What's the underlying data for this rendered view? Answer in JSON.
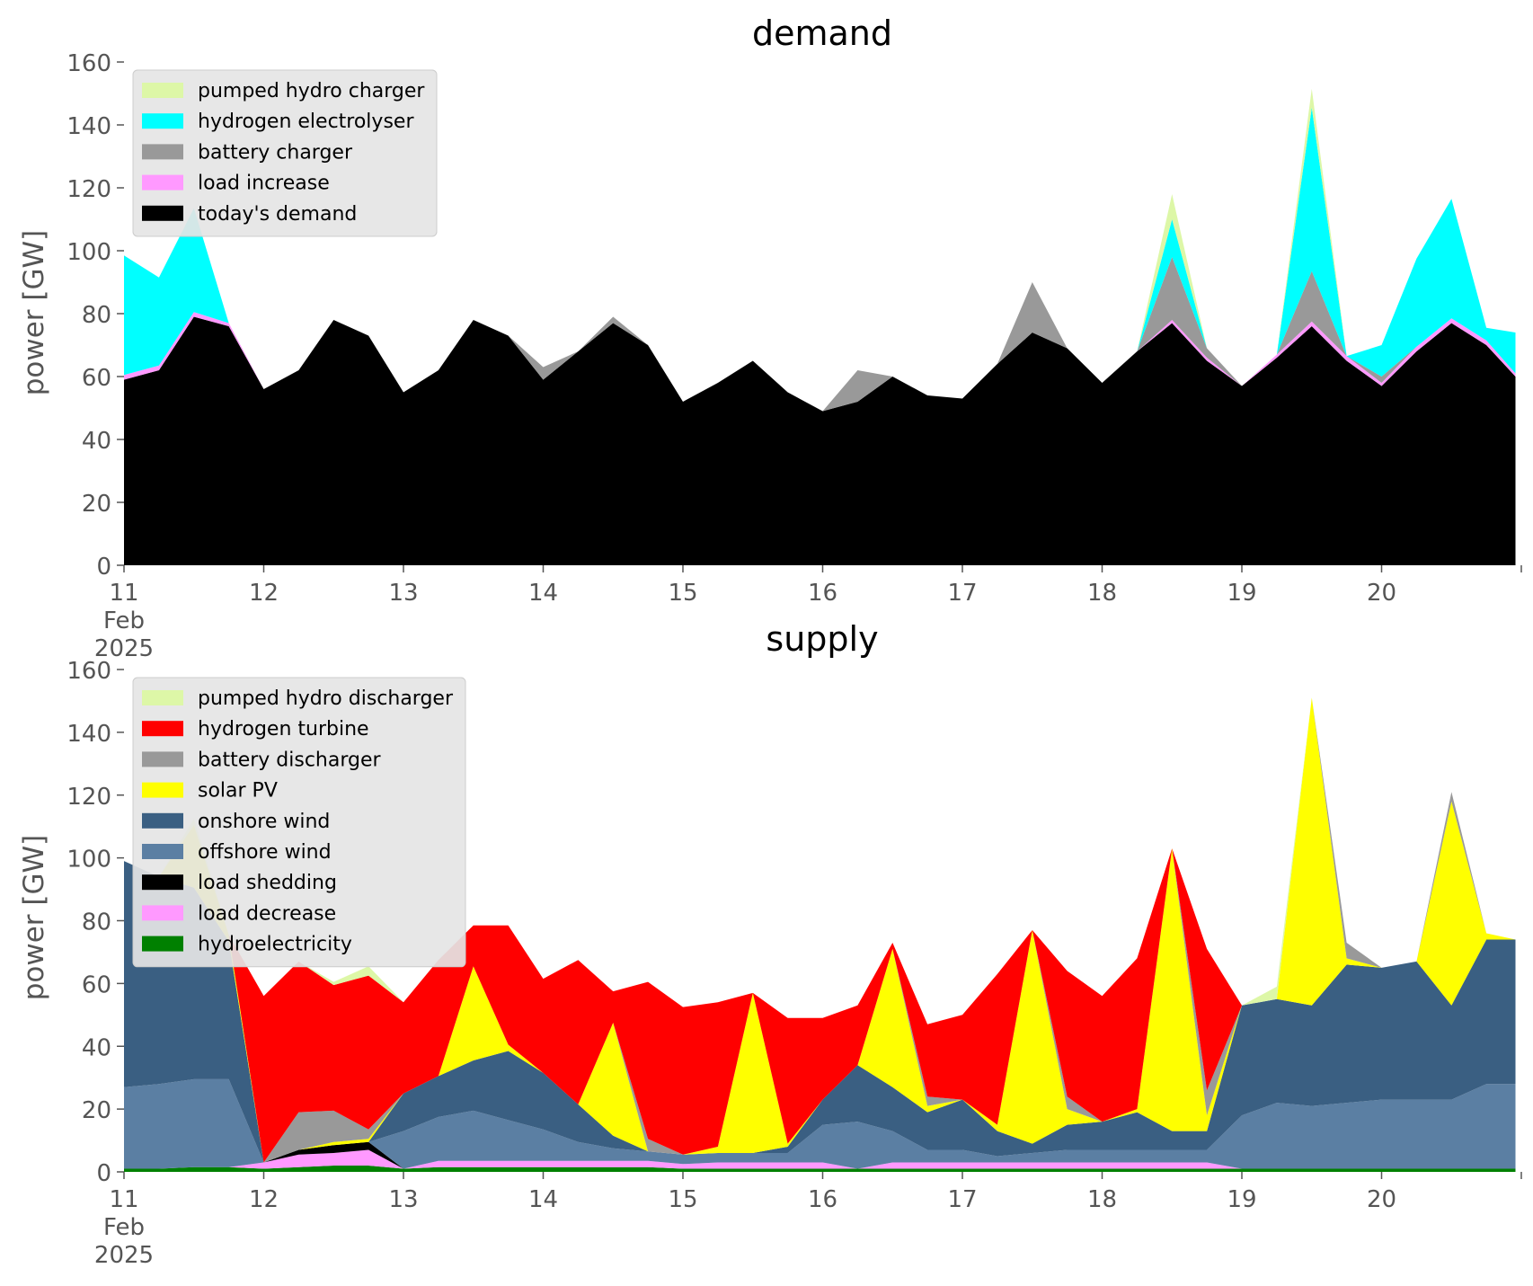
{
  "chart_data": [
    {
      "type": "area",
      "title": "demand",
      "ylabel": "power [GW]",
      "xlabel": "",
      "ylim": [
        0,
        160
      ],
      "xlim": [
        "2025-02-11",
        "2025-02-21"
      ],
      "yticks": [
        "0",
        "20",
        "40",
        "60",
        "80",
        "100",
        "120",
        "140",
        "160"
      ],
      "xticks": [
        {
          "x": "2025-02-11",
          "lines": [
            "11",
            "Feb",
            "2025"
          ]
        },
        {
          "x": "2025-02-12",
          "lines": [
            "12"
          ]
        },
        {
          "x": "2025-02-13",
          "lines": [
            "13"
          ]
        },
        {
          "x": "2025-02-14",
          "lines": [
            "14"
          ]
        },
        {
          "x": "2025-02-15",
          "lines": [
            "15"
          ]
        },
        {
          "x": "2025-02-16",
          "lines": [
            "16"
          ]
        },
        {
          "x": "2025-02-17",
          "lines": [
            "17"
          ]
        },
        {
          "x": "2025-02-18",
          "lines": [
            "18"
          ]
        },
        {
          "x": "2025-02-19",
          "lines": [
            "19"
          ]
        },
        {
          "x": "2025-02-20",
          "lines": [
            "20"
          ]
        },
        {
          "x": "2025-02-21",
          "lines": [
            ""
          ]
        }
      ],
      "grid": false,
      "stacked": true,
      "legend_position": "top-left",
      "x": [
        "2025-02-11 00:00",
        "2025-02-11 06:00",
        "2025-02-11 12:00",
        "2025-02-11 18:00",
        "2025-02-12 00:00",
        "2025-02-12 06:00",
        "2025-02-12 12:00",
        "2025-02-12 18:00",
        "2025-02-13 00:00",
        "2025-02-13 06:00",
        "2025-02-13 12:00",
        "2025-02-13 18:00",
        "2025-02-14 00:00",
        "2025-02-14 06:00",
        "2025-02-14 12:00",
        "2025-02-14 18:00",
        "2025-02-15 00:00",
        "2025-02-15 06:00",
        "2025-02-15 12:00",
        "2025-02-15 18:00",
        "2025-02-16 00:00",
        "2025-02-16 06:00",
        "2025-02-16 12:00",
        "2025-02-16 18:00",
        "2025-02-17 00:00",
        "2025-02-17 06:00",
        "2025-02-17 12:00",
        "2025-02-17 18:00",
        "2025-02-18 00:00",
        "2025-02-18 06:00",
        "2025-02-18 12:00",
        "2025-02-18 18:00",
        "2025-02-19 00:00",
        "2025-02-19 06:00",
        "2025-02-19 12:00",
        "2025-02-19 18:00",
        "2025-02-20 00:00",
        "2025-02-20 06:00",
        "2025-02-20 12:00",
        "2025-02-20 18:00",
        "2025-02-20 23:00"
      ],
      "series": [
        {
          "name": "today's demand",
          "color": "#000000",
          "values": [
            59,
            62,
            79,
            76,
            56,
            62,
            78,
            73,
            55,
            62,
            78,
            73,
            59,
            68,
            77,
            70,
            52,
            58,
            65,
            55,
            49,
            52,
            60,
            54,
            53,
            64,
            74,
            69,
            58,
            68,
            77,
            65,
            57,
            66,
            76,
            65,
            57,
            68,
            77,
            70,
            60
          ]
        },
        {
          "name": "load increase",
          "color": "#ff99ff",
          "values": [
            1.5,
            1.5,
            1.5,
            1,
            0,
            0,
            0,
            0,
            0,
            0,
            0,
            0,
            0,
            0,
            0,
            0,
            0,
            0,
            0,
            0,
            0,
            0,
            0,
            0,
            0,
            0,
            0,
            0,
            0,
            0,
            1,
            1,
            0,
            1,
            1.5,
            1.5,
            1,
            1.5,
            1.5,
            1.5,
            1
          ]
        },
        {
          "name": "battery charger",
          "color": "#999999",
          "values": [
            0,
            0,
            0,
            0,
            0,
            0,
            0,
            0,
            0,
            0,
            0,
            0,
            4,
            0,
            2,
            0,
            0,
            0,
            0,
            0,
            0,
            10,
            0,
            0,
            0,
            0,
            16,
            0,
            0,
            0,
            20,
            3,
            0,
            0,
            16,
            0,
            2,
            0,
            0,
            0,
            0
          ]
        },
        {
          "name": "hydrogen electrolyser",
          "color": "#00ffff",
          "values": [
            38,
            28,
            33,
            0,
            0,
            0,
            0,
            0,
            0,
            0,
            0,
            0,
            0,
            0,
            0,
            0,
            0,
            0,
            0,
            0,
            0,
            0,
            0,
            0,
            0,
            0,
            0,
            0,
            0,
            0,
            12,
            0,
            0,
            0,
            52,
            0,
            10,
            28,
            38,
            4,
            13
          ]
        },
        {
          "name": "pumped hydro charger",
          "color": "#ddf7a7",
          "values": [
            0,
            0,
            0,
            0,
            0,
            0,
            0,
            0,
            0,
            0,
            0,
            0,
            0,
            0,
            0,
            0,
            0,
            0,
            0,
            0,
            0,
            0,
            0,
            0,
            0,
            0,
            0,
            0,
            0,
            0,
            8,
            0,
            0,
            0,
            6,
            0,
            0,
            0,
            0,
            0,
            0
          ]
        }
      ]
    },
    {
      "type": "area",
      "title": "supply",
      "ylabel": "power [GW]",
      "xlabel": "",
      "ylim": [
        0,
        160
      ],
      "xlim": [
        "2025-02-11",
        "2025-02-21"
      ],
      "yticks": [
        "0",
        "20",
        "40",
        "60",
        "80",
        "100",
        "120",
        "140",
        "160"
      ],
      "xticks": [
        {
          "x": "2025-02-11",
          "lines": [
            "11",
            "Feb",
            "2025"
          ]
        },
        {
          "x": "2025-02-12",
          "lines": [
            "12"
          ]
        },
        {
          "x": "2025-02-13",
          "lines": [
            "13"
          ]
        },
        {
          "x": "2025-02-14",
          "lines": [
            "14"
          ]
        },
        {
          "x": "2025-02-15",
          "lines": [
            "15"
          ]
        },
        {
          "x": "2025-02-16",
          "lines": [
            "16"
          ]
        },
        {
          "x": "2025-02-17",
          "lines": [
            "17"
          ]
        },
        {
          "x": "2025-02-18",
          "lines": [
            "18"
          ]
        },
        {
          "x": "2025-02-19",
          "lines": [
            "19"
          ]
        },
        {
          "x": "2025-02-20",
          "lines": [
            "20"
          ]
        },
        {
          "x": "2025-02-21",
          "lines": [
            ""
          ]
        }
      ],
      "grid": false,
      "stacked": true,
      "legend_position": "top-left",
      "x": [
        "2025-02-11 00:00",
        "2025-02-11 06:00",
        "2025-02-11 12:00",
        "2025-02-11 18:00",
        "2025-02-12 00:00",
        "2025-02-12 06:00",
        "2025-02-12 12:00",
        "2025-02-12 18:00",
        "2025-02-13 00:00",
        "2025-02-13 06:00",
        "2025-02-13 12:00",
        "2025-02-13 18:00",
        "2025-02-14 00:00",
        "2025-02-14 06:00",
        "2025-02-14 12:00",
        "2025-02-14 18:00",
        "2025-02-15 00:00",
        "2025-02-15 06:00",
        "2025-02-15 12:00",
        "2025-02-15 18:00",
        "2025-02-16 00:00",
        "2025-02-16 06:00",
        "2025-02-16 12:00",
        "2025-02-16 18:00",
        "2025-02-17 00:00",
        "2025-02-17 06:00",
        "2025-02-17 12:00",
        "2025-02-17 18:00",
        "2025-02-18 00:00",
        "2025-02-18 06:00",
        "2025-02-18 12:00",
        "2025-02-18 18:00",
        "2025-02-19 00:00",
        "2025-02-19 06:00",
        "2025-02-19 12:00",
        "2025-02-19 18:00",
        "2025-02-20 00:00",
        "2025-02-20 06:00",
        "2025-02-20 12:00",
        "2025-02-20 18:00",
        "2025-02-20 23:00"
      ],
      "series": [
        {
          "name": "hydroelectricity",
          "color": "#008000",
          "values": [
            1,
            1,
            1.5,
            1.5,
            1,
            1.5,
            2,
            2,
            1,
            1.5,
            1.5,
            1.5,
            1.5,
            1.5,
            1.5,
            1.5,
            1,
            1,
            1,
            1,
            1,
            1,
            1,
            1,
            1,
            1,
            1,
            1,
            1,
            1,
            1,
            1,
            1,
            1,
            1,
            1,
            1,
            1,
            1,
            1,
            1
          ]
        },
        {
          "name": "load decrease",
          "color": "#ff99ff",
          "values": [
            0,
            0,
            0,
            0,
            2,
            4,
            4,
            5,
            0,
            2,
            2,
            2,
            2,
            2,
            2,
            2,
            1.5,
            2,
            2,
            2,
            2,
            0,
            2,
            2,
            2,
            2,
            2,
            2,
            2,
            2,
            2,
            2,
            0,
            0,
            0,
            0,
            0,
            0,
            0,
            0,
            0
          ]
        },
        {
          "name": "load shedding",
          "color": "#000000",
          "values": [
            0,
            0,
            0,
            0,
            0,
            1.5,
            2.5,
            2.5,
            0,
            0,
            0,
            0,
            0,
            0,
            0,
            0,
            0,
            0,
            0,
            0,
            0,
            0,
            0,
            0,
            0,
            0,
            0,
            0,
            0,
            0,
            0,
            0,
            0,
            0,
            0,
            0,
            0,
            0,
            0,
            0,
            0
          ]
        },
        {
          "name": "offshore wind",
          "color": "#5b7fa3",
          "values": [
            26,
            27,
            28,
            28,
            0,
            0,
            0,
            0,
            12,
            14,
            16,
            13,
            10,
            6,
            4,
            3,
            3,
            3,
            3,
            3,
            12,
            15,
            10,
            4,
            4,
            2,
            3,
            4,
            4,
            4,
            4,
            4,
            17,
            21,
            20,
            21,
            22,
            22,
            22,
            27,
            27
          ]
        },
        {
          "name": "onshore wind",
          "color": "#3a5f82",
          "values": [
            72,
            66,
            61,
            44,
            0,
            0,
            0,
            0,
            12,
            13,
            16,
            22,
            18,
            12,
            4,
            0,
            0,
            0,
            0,
            2,
            8,
            18,
            14,
            12,
            16,
            8,
            3,
            8,
            9,
            12,
            6,
            6,
            35,
            33,
            32,
            44,
            42,
            44,
            30,
            46,
            46
          ]
        },
        {
          "name": "solar PV",
          "color": "#ffff00",
          "values": [
            0,
            0,
            20,
            2,
            0,
            0,
            1,
            1,
            0,
            0,
            30,
            2,
            0,
            0,
            36,
            0,
            0,
            2,
            51,
            1,
            0,
            0,
            44,
            2,
            0,
            2,
            68,
            5,
            0,
            1,
            90,
            5,
            0,
            0,
            98,
            2,
            0,
            0,
            65,
            2,
            0
          ]
        },
        {
          "name": "battery discharger",
          "color": "#999999",
          "values": [
            0,
            0,
            0,
            0,
            0,
            12,
            10,
            3,
            0,
            0,
            0,
            0,
            0,
            0,
            0,
            4,
            0,
            0,
            0,
            0,
            0,
            0,
            0,
            3,
            0,
            0,
            0,
            4,
            0,
            0,
            0,
            8,
            0,
            0,
            0,
            5,
            0,
            0,
            3,
            0,
            0
          ]
        },
        {
          "name": "hydrogen turbine",
          "color": "#ff0000",
          "values": [
            0,
            0,
            0,
            0,
            53,
            48,
            40,
            49,
            29,
            37,
            13,
            38,
            30,
            46,
            10,
            50,
            47,
            46,
            0,
            40,
            26,
            19,
            2,
            23,
            27,
            48,
            0,
            40,
            40,
            48,
            0,
            45,
            0,
            0,
            0,
            0,
            0,
            0,
            0,
            0,
            0
          ]
        },
        {
          "name": "pumped hydro discharger",
          "color": "#ddf7a7",
          "values": [
            0,
            0,
            2,
            0,
            0,
            0,
            1,
            3,
            0,
            0,
            0,
            0,
            0,
            0,
            0,
            0,
            0,
            0,
            0,
            0,
            0,
            0,
            0,
            0,
            0,
            0,
            0,
            0,
            0,
            0,
            0,
            0,
            0,
            4,
            0,
            0,
            0,
            0,
            0,
            0,
            0
          ]
        }
      ]
    }
  ]
}
